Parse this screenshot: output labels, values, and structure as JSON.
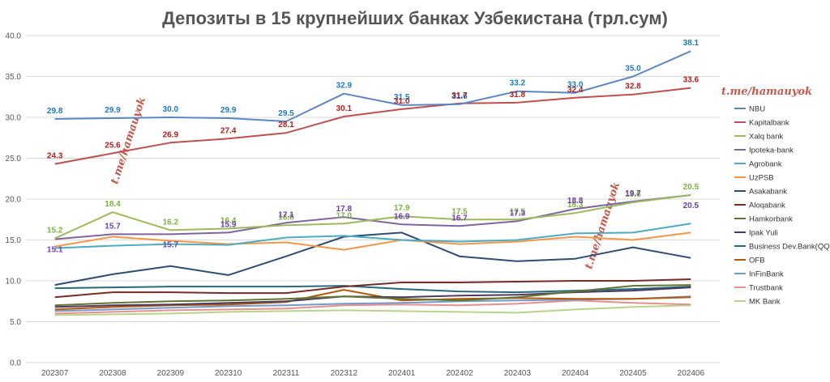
{
  "chart_data": {
    "type": "line",
    "title": "Депозиты в 15 крупнейших банках Узбекистана (трл.сум)",
    "xlabel": "",
    "ylabel": "",
    "ylim": [
      0,
      40
    ],
    "yticks": [
      "0.0",
      "5.0",
      "10.0",
      "15.0",
      "20.0",
      "25.0",
      "30.0",
      "35.0",
      "40.0"
    ],
    "grid": "horizontal",
    "legend_position": "right",
    "watermark": "t.me/hamauyok",
    "categories": [
      "202307",
      "202308",
      "202309",
      "202310",
      "202311",
      "202312",
      "202401",
      "202402",
      "202403",
      "202404",
      "202405",
      "202406"
    ],
    "series": [
      {
        "name": "NBU",
        "color": "#5b86c5",
        "label_color": "#1f7ac0",
        "label_pos": "above",
        "show_labels": true,
        "values": [
          29.8,
          29.9,
          30.0,
          29.9,
          29.5,
          32.9,
          31.5,
          31.6,
          33.2,
          33.0,
          35.0,
          38.1
        ]
      },
      {
        "name": "Kapitalbank",
        "color": "#c0504d",
        "label_color": "#b71c1c",
        "label_pos": "above",
        "show_labels": true,
        "values": [
          24.3,
          25.6,
          26.9,
          27.4,
          28.1,
          30.1,
          31.0,
          31.7,
          31.8,
          32.4,
          32.8,
          33.6
        ]
      },
      {
        "name": "Xalq bank",
        "color": "#9bbb59",
        "label_color": "#7cb342",
        "label_pos": "above",
        "show_labels": true,
        "values": [
          15.2,
          18.4,
          16.2,
          16.4,
          16.8,
          17.0,
          17.9,
          17.5,
          17.5,
          18.3,
          19.6,
          20.5
        ]
      },
      {
        "name": "Ipoteka-bank",
        "color": "#8064a2",
        "label_color": "#6a3fb5",
        "label_pos": "alt",
        "show_labels": true,
        "values": [
          15.1,
          15.7,
          15.7,
          15.9,
          17.1,
          17.8,
          16.9,
          16.7,
          17.3,
          18.8,
          19.7,
          20.5
        ]
      },
      {
        "name": "Agrobank",
        "color": "#4bacc6",
        "show_labels": false,
        "values": [
          14.0,
          14.3,
          14.5,
          14.4,
          15.3,
          15.5,
          15.0,
          14.8,
          15.0,
          15.8,
          15.9,
          17.0
        ]
      },
      {
        "name": "UzPSB",
        "color": "#f79646",
        "show_labels": false,
        "values": [
          14.2,
          15.4,
          14.9,
          14.5,
          14.7,
          13.8,
          15.0,
          14.5,
          14.8,
          15.4,
          15.0,
          15.9
        ]
      },
      {
        "name": "Asakabank",
        "color": "#2c4d75",
        "show_labels": false,
        "values": [
          9.5,
          10.8,
          11.8,
          10.7,
          13.0,
          15.4,
          15.9,
          13.0,
          12.4,
          12.7,
          14.1,
          12.8
        ]
      },
      {
        "name": "Aloqabank",
        "color": "#772c2a",
        "show_labels": false,
        "values": [
          8.0,
          8.6,
          8.6,
          8.5,
          8.5,
          9.3,
          9.8,
          9.8,
          9.9,
          10.0,
          10.0,
          10.2
        ]
      },
      {
        "name": "Hamkorbank",
        "color": "#5f7530",
        "show_labels": false,
        "values": [
          7.0,
          7.3,
          7.5,
          7.6,
          7.8,
          8.1,
          7.8,
          7.6,
          8.0,
          8.7,
          9.4,
          9.5
        ]
      },
      {
        "name": "Ipak Yuli",
        "color": "#4d3b62",
        "show_labels": false,
        "values": [
          6.8,
          7.0,
          7.1,
          7.3,
          7.5,
          8.1,
          8.0,
          8.2,
          8.3,
          8.6,
          8.8,
          9.2
        ]
      },
      {
        "name": "Business Dev.Bank(QQB)",
        "color": "#276a7c",
        "show_labels": false,
        "values": [
          9.1,
          9.2,
          9.3,
          9.3,
          9.3,
          9.4,
          9.0,
          8.7,
          8.6,
          8.8,
          9.0,
          9.3
        ]
      },
      {
        "name": "OFB",
        "color": "#b65708",
        "show_labels": false,
        "values": [
          6.5,
          6.8,
          7.0,
          7.1,
          7.4,
          8.9,
          7.6,
          7.8,
          7.9,
          7.8,
          7.8,
          8.0
        ]
      },
      {
        "name": "InFinBank",
        "color": "#729aca",
        "show_labels": false,
        "values": [
          6.3,
          6.5,
          6.7,
          6.9,
          7.0,
          7.2,
          7.3,
          7.5,
          7.6,
          7.7,
          7.8,
          8.1
        ]
      },
      {
        "name": "Trustbank",
        "color": "#e6908d",
        "show_labels": false,
        "values": [
          6.0,
          6.2,
          6.4,
          6.5,
          6.6,
          7.0,
          7.1,
          7.0,
          7.2,
          7.6,
          7.3,
          7.1
        ]
      },
      {
        "name": "MK Bank",
        "color": "#b8d48a",
        "show_labels": false,
        "values": [
          5.8,
          5.9,
          6.0,
          6.2,
          6.3,
          6.4,
          6.3,
          6.2,
          6.1,
          6.5,
          6.8,
          7.0
        ]
      }
    ]
  }
}
